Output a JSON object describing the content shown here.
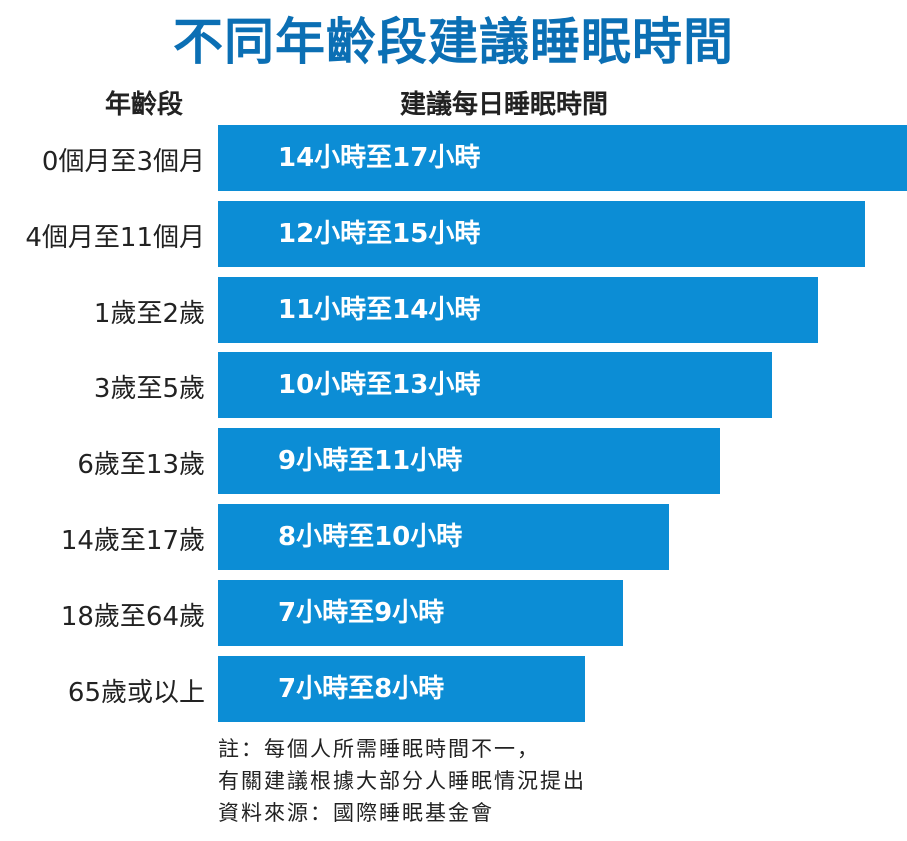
{
  "header": {
    "title": "不同年齡段建議睡眠時間"
  },
  "table": {
    "columns": [
      "年齡段",
      "建議每日睡眠時間"
    ],
    "rows": [
      [
        "0個月至3個月",
        "14小時至17小時"
      ],
      [
        "4個月至11個月",
        "12小時至15小時"
      ],
      [
        "1歲至2歲",
        "11小時至14小時"
      ],
      [
        "3歲至5歲",
        "10小時至13小時"
      ],
      [
        "6歲至13歲",
        "9小時至11小時"
      ],
      [
        "14歲至17歲",
        "8小時至10小時"
      ],
      [
        "18歲至64歲",
        "7小時至9小時"
      ],
      [
        "65歲或以上",
        "7小時至8小時"
      ]
    ]
  },
  "notes": [
    "註：每個人所需睡眠時間不一，",
    "有關建議根據大部分人睡眠情況提出",
    "資料來源：國際睡眠基金會"
  ]
}
